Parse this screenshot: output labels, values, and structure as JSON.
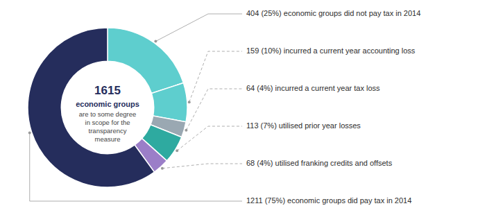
{
  "chart_data": {
    "type": "donut",
    "categories": [
      "404 (25%) economic groups did not pay tax in 2014",
      "159 (10%) incurred a current year accounting loss",
      "64 (4%) incurred a current year tax loss",
      "113 (7%) utilised prior year losses",
      "68 (4%) utilised franking credits and offsets",
      "1211 (75%) economic groups did pay tax in 2014"
    ],
    "values": [
      404,
      159,
      64,
      113,
      68,
      1211
    ],
    "colors": [
      "#5ECECE",
      "#5ECECE",
      "#9AA8B2",
      "#2EAAA0",
      "#9B7EC8",
      "#252D5C"
    ],
    "annotations": [
      "1615",
      "economic groups",
      "are to some degree",
      "in scope for the",
      "transparency",
      "measure"
    ]
  }
}
